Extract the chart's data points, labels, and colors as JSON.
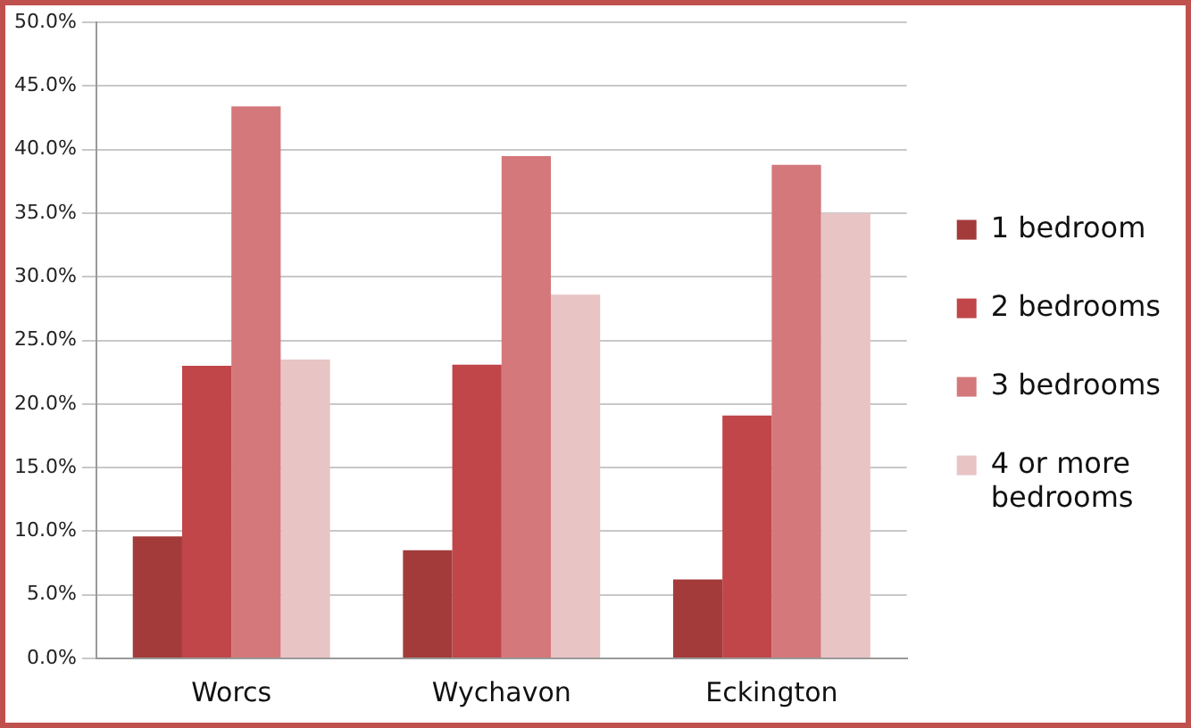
{
  "chart_data": {
    "type": "bar",
    "categories": [
      "Worcs",
      "Wychavon",
      "Eckington"
    ],
    "series": [
      {
        "name": "1 bedroom",
        "color": "#a33b3b",
        "values": [
          9.6,
          8.5,
          6.2
        ]
      },
      {
        "name": "2 bedrooms",
        "color": "#c0464a",
        "values": [
          23.0,
          23.1,
          19.1
        ]
      },
      {
        "name": "3 bedrooms",
        "color": "#d4787b",
        "values": [
          43.4,
          39.5,
          38.8
        ]
      },
      {
        "name": "4 or more bedrooms",
        "color": "#e8c4c4",
        "values": [
          23.5,
          28.6,
          35.0
        ]
      }
    ],
    "ylim": [
      0,
      50
    ],
    "yticks": [
      {
        "value": 0,
        "label": "0.0%"
      },
      {
        "value": 5,
        "label": "5.0%"
      },
      {
        "value": 10,
        "label": "10.0%"
      },
      {
        "value": 15,
        "label": "15.0%"
      },
      {
        "value": 20,
        "label": "20.0%"
      },
      {
        "value": 25,
        "label": "25.0%"
      },
      {
        "value": 30,
        "label": "30.0%"
      },
      {
        "value": 35,
        "label": "35.0%"
      },
      {
        "value": 40,
        "label": "40.0%"
      },
      {
        "value": 45,
        "label": "45.0%"
      },
      {
        "value": 50,
        "label": "50.0%"
      }
    ],
    "grid": "y",
    "legend": "right"
  }
}
